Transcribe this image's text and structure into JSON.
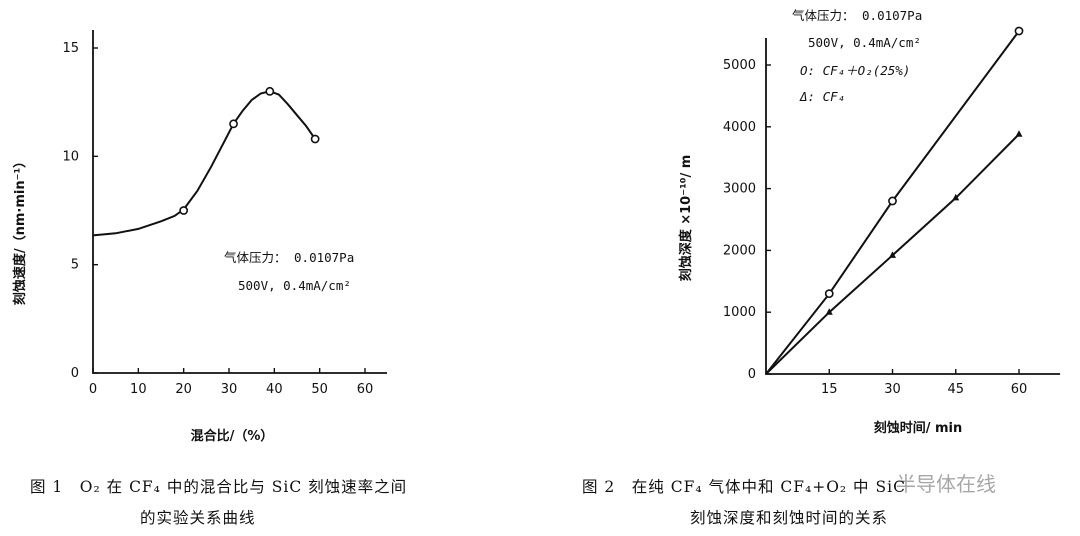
{
  "chart_data": [
    {
      "type": "line",
      "xlabel": "混合比/（%）",
      "ylabel": "刻蚀速度/（nm·min⁻¹）",
      "xlim": [
        0,
        60
      ],
      "ylim": [
        0,
        15
      ],
      "xticks": [
        "0",
        "10",
        "20",
        "30",
        "40",
        "50",
        "60"
      ],
      "yticks": [
        "0",
        "5",
        "10",
        "15"
      ],
      "series": [
        {
          "markers": "circle",
          "x": [
            20,
            31,
            39,
            49
          ],
          "y": [
            7.5,
            11.5,
            13.0,
            10.8
          ]
        }
      ],
      "curve_x": [
        0,
        5,
        10,
        15,
        18,
        20,
        23,
        26,
        29,
        31,
        33,
        35,
        37,
        39,
        41,
        43,
        45,
        47,
        49
      ],
      "curve_y": [
        6.35,
        6.45,
        6.65,
        7.0,
        7.25,
        7.55,
        8.4,
        9.5,
        10.7,
        11.5,
        12.1,
        12.6,
        12.9,
        13.0,
        12.85,
        12.4,
        11.9,
        11.4,
        10.8
      ],
      "annotations": [
        "气体压力： 0.0107Pa",
        "500V, 0.4mA/cm²"
      ],
      "caption": [
        "图 1　O₂ 在 CF₄ 中的混合比与 SiC 刻蚀速率之间",
        "的实验关系曲线"
      ]
    },
    {
      "type": "line",
      "xlabel": "刻蚀时间/ min",
      "ylabel": "刻蚀深度 ×10⁻¹⁰/ m",
      "xlim": [
        0,
        65
      ],
      "ylim": [
        0,
        5500
      ],
      "xticks": [
        "15",
        "30",
        "45",
        "60"
      ],
      "yticks": [
        "0",
        "1000",
        "2000",
        "3000",
        "4000",
        "5000"
      ],
      "series": [
        {
          "markers": "circle",
          "x": [
            0,
            15,
            30,
            60
          ],
          "y": [
            0,
            1300,
            2800,
            5550
          ]
        },
        {
          "markers": "triangle",
          "x": [
            0,
            15,
            30,
            45,
            60
          ],
          "y": [
            0,
            1000,
            1920,
            2850,
            3880
          ]
        }
      ],
      "annotations": [
        "气体压力： 0.0107Pa",
        "500V, 0.4mA/cm²",
        "O: CF₄＋O₂(25%)",
        "Δ: CF₄"
      ],
      "caption": [
        "图 2　在纯 CF₄ 气体中和 CF₄+O₂ 中 SiC",
        "刻蚀深度和刻蚀时间的关系"
      ]
    }
  ],
  "watermark": "半导体在线"
}
